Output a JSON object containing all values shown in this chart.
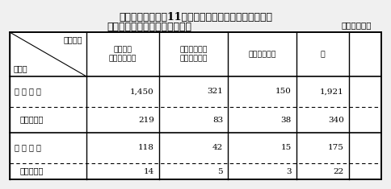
{
  "title_line1": "資料１－９　平成11年度海上保安学校学生採用試験の",
  "title_line2": "区分試験別申込者数・合格者数",
  "unit_label": "（単位：人）",
  "col_headers": [
    "船舶運航\nシステム課程",
    "情報システム\n課　　　　程",
    "海洋科学課程",
    "計"
  ],
  "row_header_top": "区分試験",
  "row_header_bottom": "項　目",
  "rows": [
    {
      "label": "申 込 者 数",
      "values": [
        "1,450",
        "321",
        "150",
        "1,921"
      ],
      "dashed": false
    },
    {
      "label": "うち女性数",
      "values": [
        "219",
        "83",
        "38",
        "340"
      ],
      "dashed": true
    },
    {
      "label": "合 格 者 数",
      "values": [
        "118",
        "42",
        "15",
        "175"
      ],
      "dashed": false
    },
    {
      "label": "うち女性数",
      "values": [
        "14",
        "5",
        "3",
        "22"
      ],
      "dashed": true
    }
  ],
  "bg_color": "#f0f0f0",
  "table_bg": "#ffffff",
  "header_bg": "#e8e8e8",
  "font_size_title": 9,
  "font_size_table": 7.5,
  "fig_width": 4.84,
  "fig_height": 2.35
}
